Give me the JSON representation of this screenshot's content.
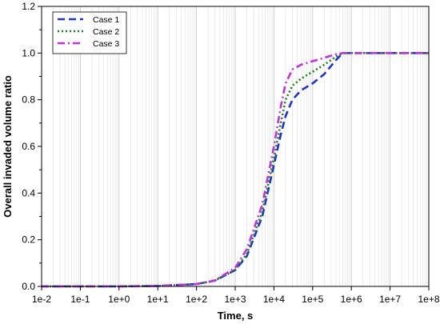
{
  "chart_data": {
    "type": "line",
    "title": "",
    "xlabel": "Time, s",
    "ylabel": "Overall invaded volume ratio",
    "xscale": "log",
    "xlim": [
      0.01,
      100000000
    ],
    "ylim": [
      0,
      1.2
    ],
    "xticks": [
      "1e-2",
      "1e-1",
      "1e+0",
      "1e+1",
      "1e+2",
      "1e+3",
      "1e+4",
      "1e+5",
      "1e+6",
      "1e+7",
      "1e+8"
    ],
    "yticks": [
      "0.0",
      "0.2",
      "0.4",
      "0.6",
      "0.8",
      "1.0",
      "1.2"
    ],
    "grid": "vertical minor log gridlines",
    "legend_position": "top-left",
    "series": [
      {
        "name": "Case 1",
        "color": "#1f33cc",
        "style": "dashed",
        "points": [
          [
            0.01,
            0
          ],
          [
            1,
            0
          ],
          [
            10,
            0.002
          ],
          [
            100,
            0.01
          ],
          [
            300,
            0.025
          ],
          [
            1000,
            0.07
          ],
          [
            2000,
            0.13
          ],
          [
            5000,
            0.3
          ],
          [
            10000,
            0.52
          ],
          [
            15000,
            0.65
          ],
          [
            20000,
            0.73
          ],
          [
            30000,
            0.8
          ],
          [
            50000,
            0.84
          ],
          [
            100000,
            0.87
          ],
          [
            200000,
            0.91
          ],
          [
            400000,
            0.97
          ],
          [
            600000,
            1.0
          ],
          [
            1000000,
            1.0
          ],
          [
            100000000,
            1.0
          ]
        ]
      },
      {
        "name": "Case 2",
        "color": "#1e7d1e",
        "style": "dotted",
        "points": [
          [
            0.01,
            0
          ],
          [
            1,
            0
          ],
          [
            10,
            0.002
          ],
          [
            100,
            0.01
          ],
          [
            300,
            0.025
          ],
          [
            1000,
            0.07
          ],
          [
            2000,
            0.14
          ],
          [
            5000,
            0.32
          ],
          [
            10000,
            0.55
          ],
          [
            15000,
            0.7
          ],
          [
            20000,
            0.8
          ],
          [
            30000,
            0.86
          ],
          [
            50000,
            0.89
          ],
          [
            100000,
            0.92
          ],
          [
            200000,
            0.95
          ],
          [
            400000,
            0.985
          ],
          [
            600000,
            1.0
          ],
          [
            1000000,
            1.0
          ],
          [
            100000000,
            1.0
          ]
        ]
      },
      {
        "name": "Case 3",
        "color": "#c033d9",
        "style": "dashdot",
        "points": [
          [
            0.01,
            0
          ],
          [
            1,
            0
          ],
          [
            10,
            0.002
          ],
          [
            100,
            0.01
          ],
          [
            300,
            0.025
          ],
          [
            1000,
            0.08
          ],
          [
            2000,
            0.16
          ],
          [
            5000,
            0.35
          ],
          [
            10000,
            0.6
          ],
          [
            15000,
            0.77
          ],
          [
            20000,
            0.87
          ],
          [
            30000,
            0.93
          ],
          [
            50000,
            0.95
          ],
          [
            100000,
            0.965
          ],
          [
            200000,
            0.98
          ],
          [
            400000,
            0.995
          ],
          [
            600000,
            1.0
          ],
          [
            1000000,
            1.0
          ],
          [
            100000000,
            1.0
          ]
        ]
      }
    ]
  }
}
